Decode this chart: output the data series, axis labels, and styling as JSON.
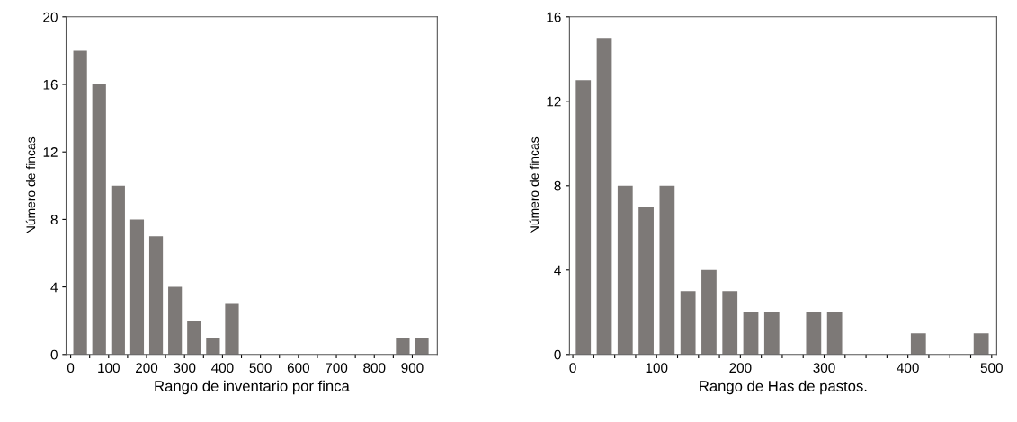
{
  "chart_data": [
    {
      "type": "histogram",
      "xlabel": "Rango de inventario por finca",
      "ylabel": "Número de fincas",
      "bins": [
        0,
        50,
        100,
        150,
        200,
        250,
        300,
        350,
        400,
        450,
        500,
        550,
        600,
        650,
        700,
        750,
        800,
        850,
        900,
        950
      ],
      "values": [
        18,
        16,
        10,
        8,
        7,
        4,
        2,
        1,
        3,
        0,
        0,
        0,
        0,
        0,
        0,
        0,
        0,
        1,
        1
      ],
      "color": "#7d7977",
      "xlim": [
        -12,
        966
      ],
      "ylim": [
        0,
        20
      ],
      "xticks": [
        0,
        {
          "value": 50,
          "label": null
        },
        100,
        {
          "value": 150,
          "label": null
        },
        200,
        {
          "value": 250,
          "label": null
        },
        300,
        {
          "value": 350,
          "label": null
        },
        400,
        {
          "value": 450,
          "label": null
        },
        500,
        {
          "value": 550,
          "label": null
        },
        600,
        {
          "value": 650,
          "label": null
        },
        700,
        {
          "value": 750,
          "label": null
        },
        800,
        {
          "value": 850,
          "label": null
        },
        900
      ],
      "yticks": [
        0,
        4,
        8,
        12,
        16,
        20
      ],
      "grid": false
    },
    {
      "type": "histogram",
      "xlabel": "Rango de Has de pastos.",
      "ylabel": "Número de fincas",
      "bins": [
        0,
        25,
        50,
        75,
        100,
        125,
        150,
        175,
        200,
        225,
        250,
        275,
        300,
        325,
        350,
        375,
        400,
        425,
        450,
        475,
        500
      ],
      "values": [
        13,
        15,
        8,
        7,
        8,
        3,
        4,
        3,
        2,
        2,
        0,
        2,
        2,
        0,
        0,
        0,
        1,
        0,
        0,
        1
      ],
      "color": "#7d7977",
      "xlim": [
        -4,
        506
      ],
      "ylim": [
        0,
        16
      ],
      "xticks": [
        0,
        {
          "value": 25,
          "label": null
        },
        {
          "value": 50,
          "label": null
        },
        {
          "value": 75,
          "label": null
        },
        100,
        {
          "value": 125,
          "label": null
        },
        {
          "value": 150,
          "label": null
        },
        {
          "value": 175,
          "label": null
        },
        200,
        {
          "value": 225,
          "label": null
        },
        {
          "value": 250,
          "label": null
        },
        {
          "value": 275,
          "label": null
        },
        300,
        {
          "value": 325,
          "label": null
        },
        {
          "value": 350,
          "label": null
        },
        {
          "value": 375,
          "label": null
        },
        400,
        {
          "value": 425,
          "label": null
        },
        {
          "value": 450,
          "label": null
        },
        {
          "value": 475,
          "label": null
        },
        500
      ],
      "yticks": [
        0,
        4,
        8,
        12,
        16
      ],
      "grid": false
    }
  ]
}
